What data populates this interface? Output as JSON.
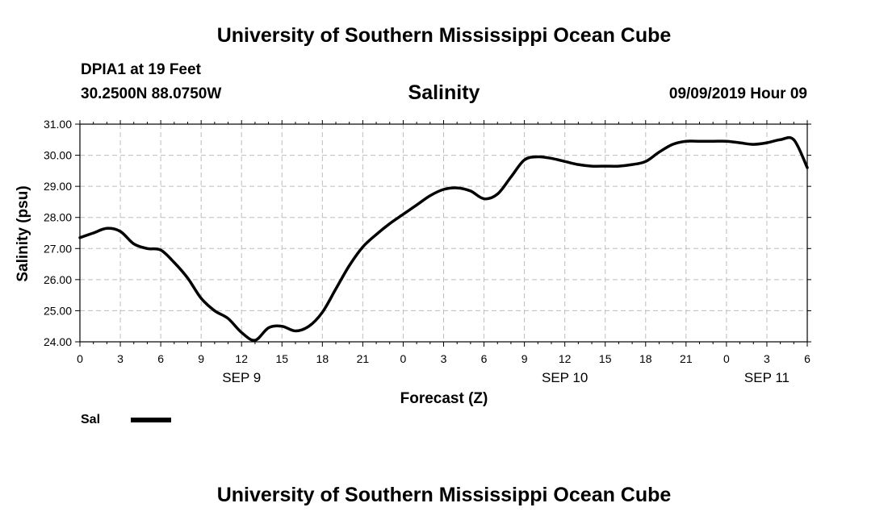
{
  "header": {
    "top_title": "University of Southern Mississippi Ocean Cube",
    "station": "DPIA1 at 19 Feet",
    "coordinates": "30.2500N 88.0750W",
    "datetime": "09/09/2019 Hour 09"
  },
  "footer": {
    "bottom_title": "University of Southern Mississippi Ocean Cube"
  },
  "chart_data": {
    "type": "line",
    "title": "Salinity",
    "xlabel": "Forecast (Z)",
    "ylabel": "Salinity (psu)",
    "ylim": [
      24.0,
      31.0
    ],
    "xlim": [
      0,
      54
    ],
    "yticks": [
      "24.00",
      "25.00",
      "26.00",
      "27.00",
      "28.00",
      "29.00",
      "30.00",
      "31.00"
    ],
    "xtick_labels": [
      "0",
      "3",
      "6",
      "9",
      "12",
      "15",
      "18",
      "21",
      "0",
      "3",
      "6",
      "9",
      "12",
      "15",
      "18",
      "21",
      "0",
      "3",
      "6"
    ],
    "day_labels": [
      {
        "label": "SEP 9",
        "hour": 12
      },
      {
        "label": "SEP 10",
        "hour": 36
      },
      {
        "label": "SEP 11",
        "hour": 51
      }
    ],
    "grid": true,
    "legend": "bottom-left",
    "series": [
      {
        "name": "Sal",
        "color": "#000000",
        "x": [
          0,
          1,
          2,
          3,
          4,
          5,
          6,
          7,
          8,
          9,
          10,
          11,
          12,
          13,
          14,
          15,
          16,
          17,
          18,
          19,
          20,
          21,
          22,
          23,
          24,
          25,
          26,
          27,
          28,
          29,
          30,
          31,
          32,
          33,
          34,
          35,
          36,
          37,
          38,
          39,
          40,
          41,
          42,
          43,
          44,
          45,
          46,
          47,
          48,
          49,
          50,
          51,
          52,
          53,
          54
        ],
        "values": [
          27.35,
          27.5,
          27.65,
          27.55,
          27.15,
          27.0,
          26.95,
          26.55,
          26.05,
          25.4,
          25.0,
          24.75,
          24.3,
          24.05,
          24.45,
          24.5,
          24.35,
          24.5,
          24.95,
          25.7,
          26.45,
          27.05,
          27.45,
          27.8,
          28.1,
          28.4,
          28.7,
          28.9,
          28.95,
          28.85,
          28.6,
          28.75,
          29.3,
          29.85,
          29.95,
          29.9,
          29.8,
          29.7,
          29.65,
          29.65,
          29.65,
          29.7,
          29.8,
          30.1,
          30.35,
          30.45,
          30.45,
          30.45,
          30.45,
          30.4,
          30.35,
          30.4,
          30.5,
          30.5,
          29.6
        ]
      }
    ]
  }
}
